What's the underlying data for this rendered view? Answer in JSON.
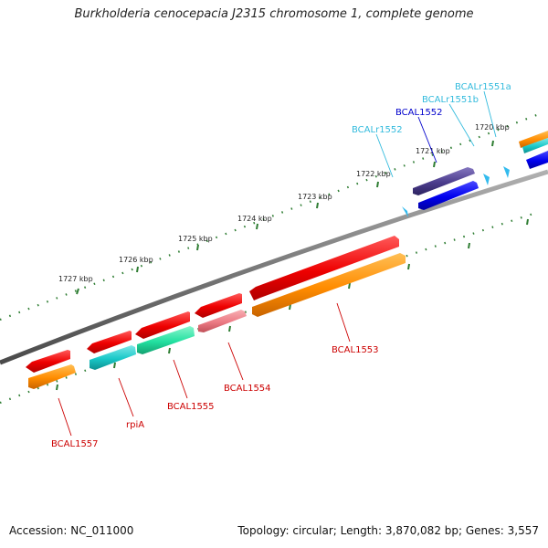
{
  "title": "Burkholderia cenocepacia J2315 chromosome 1, complete genome",
  "footer": {
    "accession": "Accession: NC_011000",
    "summary": "Topology: circular; Length: 3,870,082 bp; Genes: 3,557"
  },
  "ruler": {
    "unit": "kbp",
    "ticks": [
      "1720 kbp",
      "1721 kbp",
      "1722 kbp",
      "1723 kbp",
      "1724 kbp",
      "1725 kbp",
      "1726 kbp",
      "1727 kbp"
    ]
  },
  "features": {
    "labels": [
      "BCALr1551a",
      "BCALr1551b",
      "BCAL1552",
      "BCALr1552",
      "BCAL1553",
      "BCAL1554",
      "BCAL1555",
      "rpiA",
      "BCAL1557"
    ]
  },
  "colors": {
    "backbone": "#7a7a7a",
    "tick": "#2e7d32",
    "gene_red": "#ff1a1a",
    "gene_orange": "#ff9a1a",
    "gene_blue": "#0000ee",
    "gene_purple": "#4b3c8c",
    "gene_teal": "#19c8c8",
    "gene_mint": "#22e0a0",
    "gene_pink": "#ec7a84",
    "rna": "#33bbee",
    "label_red": "#cc0000",
    "label_cyan": "#33bbdd",
    "label_blue": "#0000cc"
  }
}
